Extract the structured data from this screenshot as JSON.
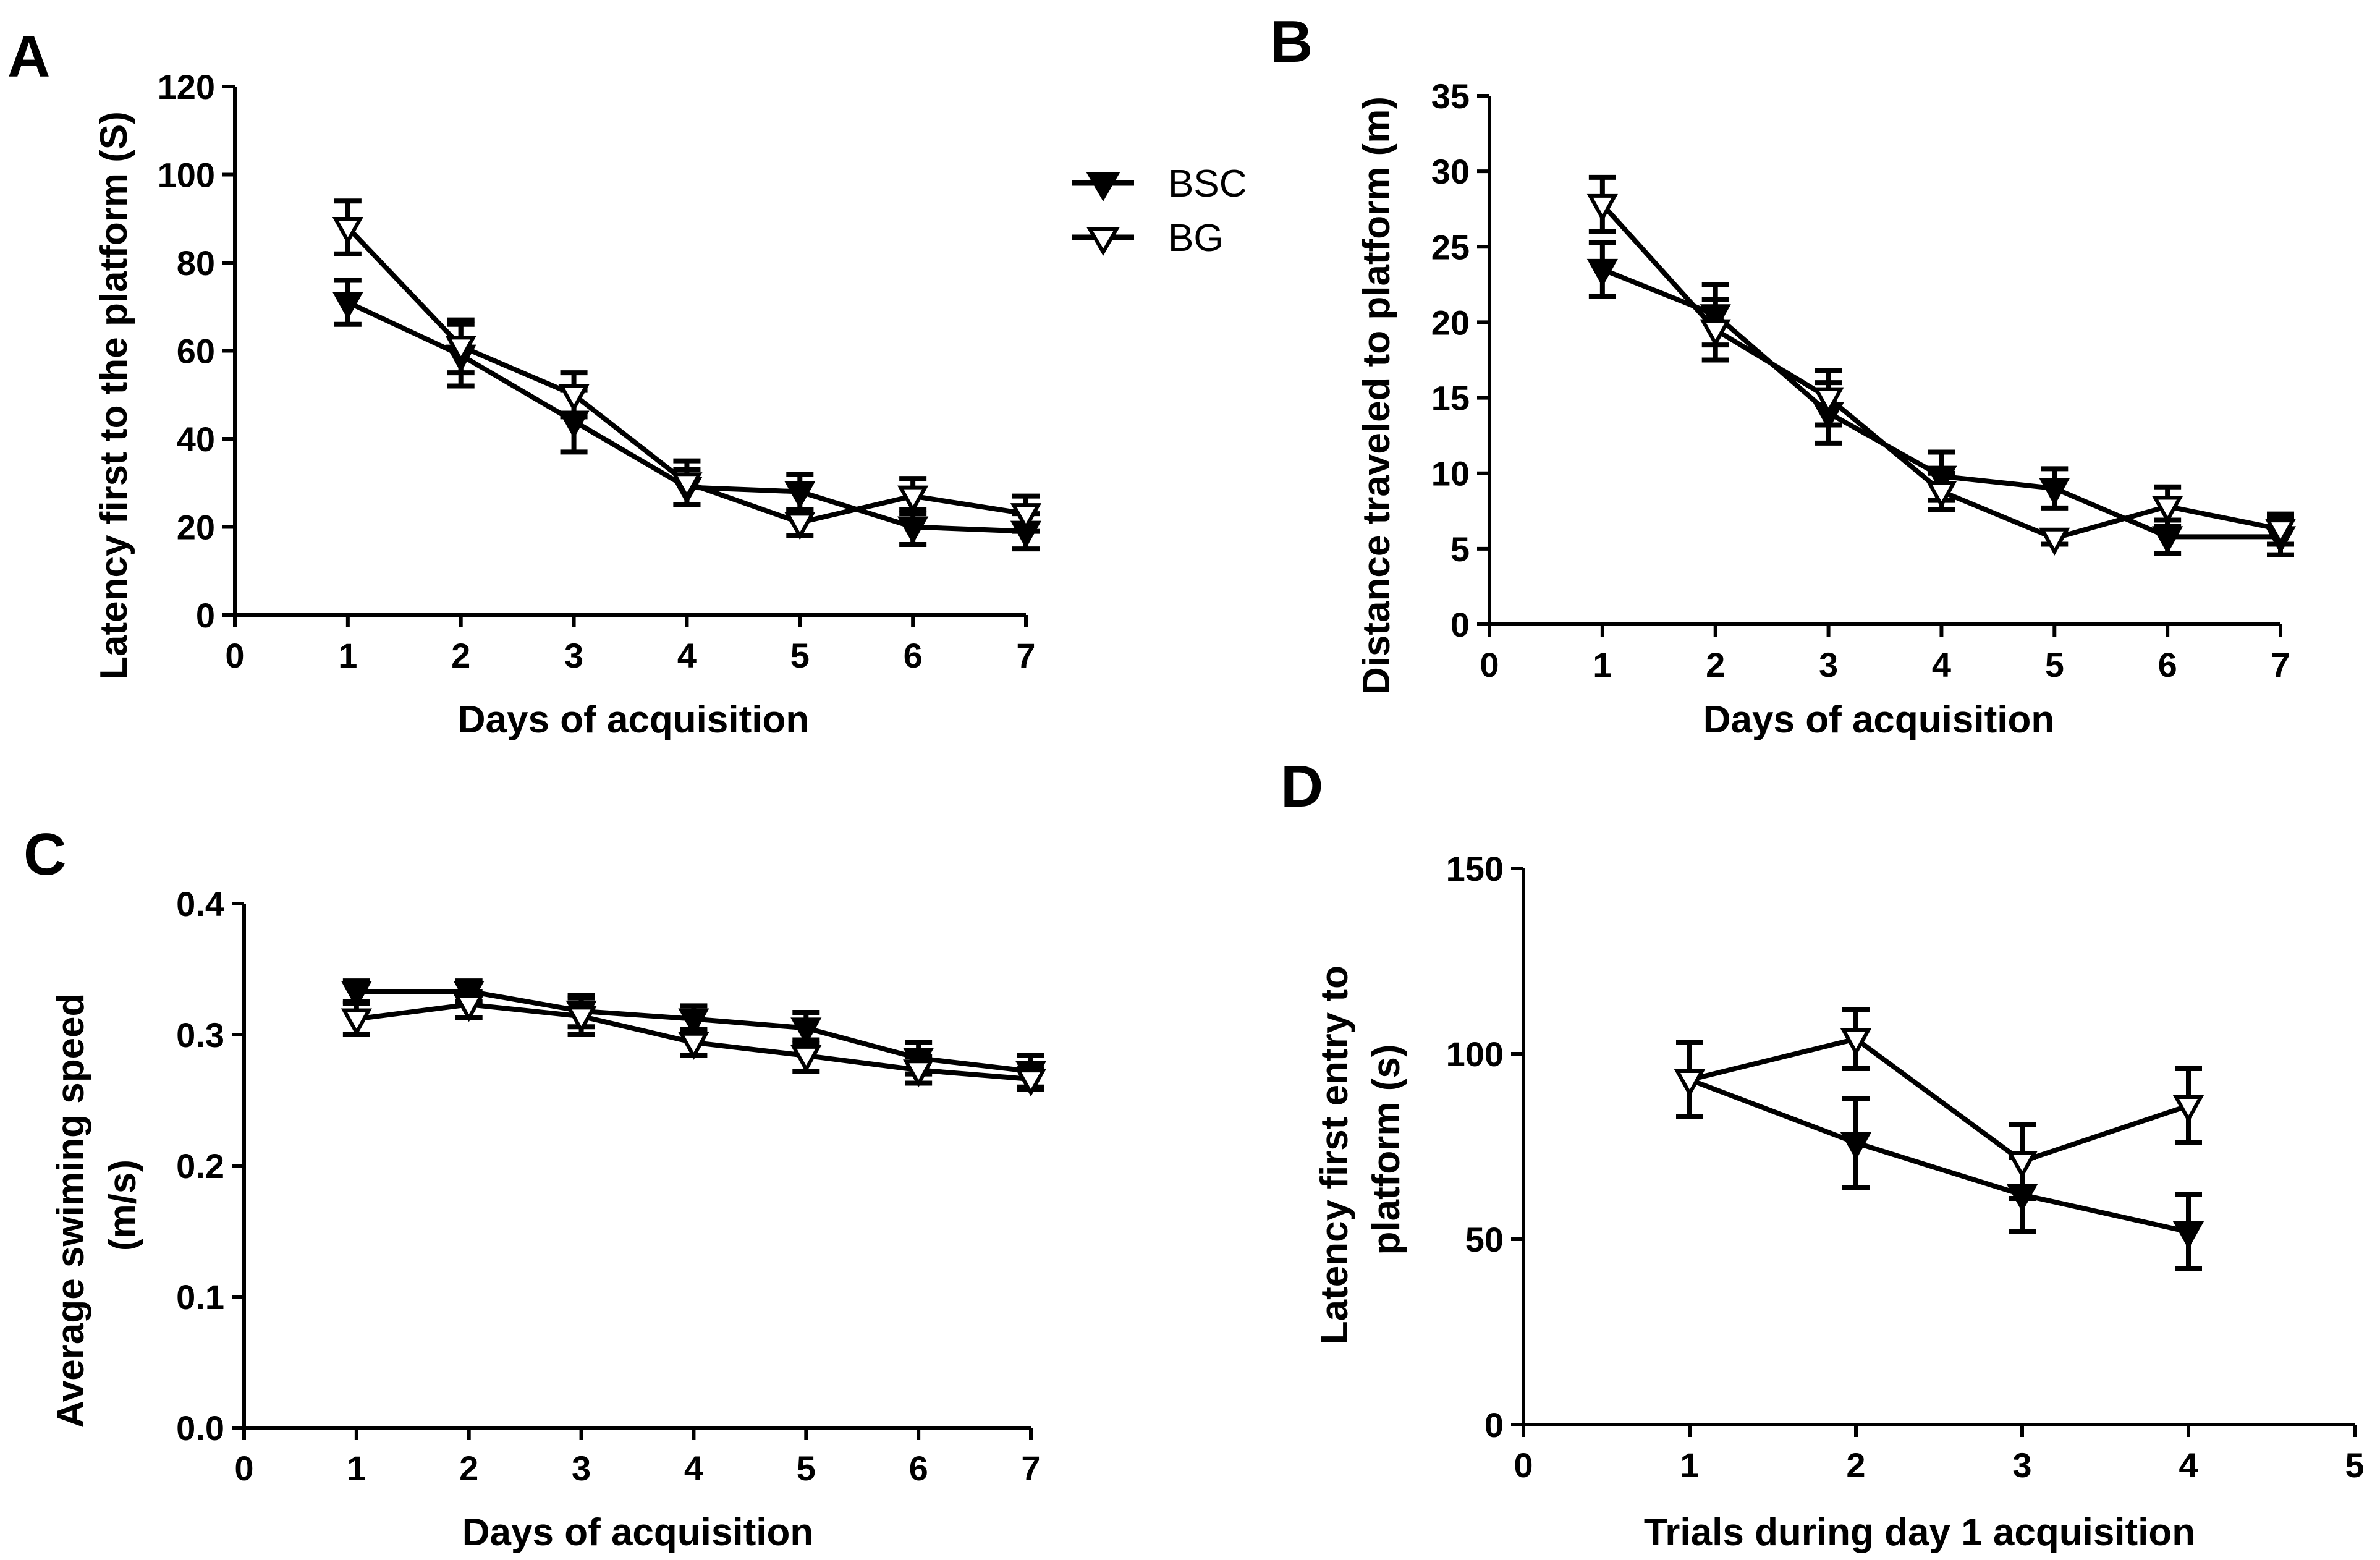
{
  "colors": {
    "stroke": "#000000",
    "open_fill": "#ffffff"
  },
  "legend": {
    "entries": [
      {
        "name": "BSC",
        "marker": "filled-down-triangle"
      },
      {
        "name": "BG",
        "marker": "open-down-triangle"
      }
    ]
  },
  "chart_data": [
    {
      "panel": "A",
      "type": "line",
      "xlabel": "Days of acquisition",
      "ylabel": "Latency first to the platform (S)",
      "xlim": [
        0,
        7
      ],
      "ylim": [
        0,
        120
      ],
      "xticks": [
        0,
        1,
        2,
        3,
        4,
        5,
        6,
        7
      ],
      "yticks": [
        0,
        20,
        40,
        60,
        80,
        100,
        120
      ],
      "x": [
        1,
        2,
        3,
        4,
        5,
        6,
        7
      ],
      "series": [
        {
          "name": "BSC",
          "values": [
            71,
            59,
            44,
            29,
            28,
            20,
            19
          ],
          "errors": [
            5,
            7,
            7,
            4,
            4,
            4,
            4
          ]
        },
        {
          "name": "BG",
          "values": [
            88,
            61,
            50,
            30,
            21,
            27,
            23
          ],
          "errors": [
            6,
            6,
            5,
            5,
            3,
            4,
            4
          ]
        }
      ]
    },
    {
      "panel": "B",
      "type": "line",
      "xlabel": "Days of acquisition",
      "ylabel": "Distance traveled to platform (m)",
      "xlim": [
        0,
        7
      ],
      "ylim": [
        0,
        35
      ],
      "xticks": [
        0,
        1,
        2,
        3,
        4,
        5,
        6,
        7
      ],
      "yticks": [
        0,
        5,
        10,
        15,
        20,
        25,
        30,
        35
      ],
      "x": [
        1,
        2,
        3,
        4,
        5,
        6,
        7
      ],
      "series": [
        {
          "name": "BSC",
          "values": [
            23.5,
            20.5,
            14.0,
            9.8,
            9.0,
            5.8,
            5.8
          ],
          "errors": [
            1.8,
            2.0,
            2.0,
            1.6,
            1.3,
            1.1,
            1.2
          ]
        },
        {
          "name": "BG",
          "values": [
            27.8,
            19.5,
            15.0,
            8.8,
            5.7,
            7.8,
            6.3
          ],
          "errors": [
            1.8,
            2.0,
            1.8,
            1.2,
            0.4,
            1.3,
            1.0
          ]
        }
      ]
    },
    {
      "panel": "C",
      "type": "line",
      "xlabel": "Days of acquisition",
      "ylabel": "Average swiming speed (m/s)",
      "xlim": [
        0,
        7
      ],
      "ylim": [
        0,
        0.4
      ],
      "xticks": [
        0,
        1,
        2,
        3,
        4,
        5,
        6,
        7
      ],
      "yticks": [
        "0.0",
        "0.1",
        "0.2",
        "0.3",
        "0.4"
      ],
      "x": [
        1,
        2,
        3,
        4,
        5,
        6,
        7
      ],
      "series": [
        {
          "name": "BSC",
          "values": [
            0.333,
            0.333,
            0.318,
            0.312,
            0.305,
            0.282,
            0.272
          ],
          "errors": [
            0.008,
            0.008,
            0.012,
            0.01,
            0.012,
            0.012,
            0.012
          ]
        },
        {
          "name": "BG",
          "values": [
            0.312,
            0.323,
            0.314,
            0.294,
            0.284,
            0.273,
            0.266
          ],
          "errors": [
            0.012,
            0.01,
            0.014,
            0.01,
            0.012,
            0.01,
            0.008
          ]
        }
      ]
    },
    {
      "panel": "D",
      "type": "line",
      "xlabel": "Trials during day 1 acquisition",
      "ylabel": "Latency first entry to platform (s)",
      "xlim": [
        0,
        5
      ],
      "ylim": [
        0,
        150
      ],
      "xticks": [
        0,
        1,
        2,
        3,
        4,
        5
      ],
      "yticks": [
        0,
        50,
        100,
        150
      ],
      "x": [
        1,
        2,
        3,
        4
      ],
      "series": [
        {
          "name": "BSC",
          "values": [
            93,
            76,
            62,
            52
          ],
          "errors": [
            10,
            12,
            10,
            10
          ]
        },
        {
          "name": "BG",
          "values": [
            93,
            104,
            71,
            86
          ],
          "errors": [
            10,
            8,
            10,
            10
          ]
        }
      ]
    }
  ]
}
